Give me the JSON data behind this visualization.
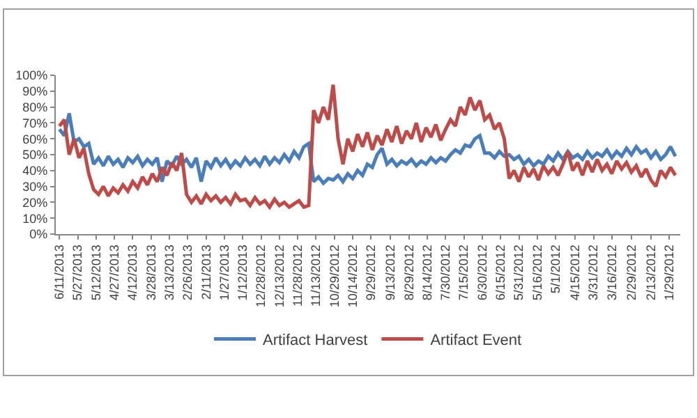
{
  "chart_data": {
    "type": "line",
    "x": [
      "2013-06-11",
      "2013-06-07",
      "2013-06-03",
      "2013-05-30",
      "2013-05-26",
      "2013-05-22",
      "2013-05-18",
      "2013-05-14",
      "2013-05-10",
      "2013-05-06",
      "2013-05-02",
      "2013-04-28",
      "2013-04-24",
      "2013-04-20",
      "2013-04-16",
      "2013-04-12",
      "2013-04-08",
      "2013-04-04",
      "2013-03-31",
      "2013-03-27",
      "2013-03-23",
      "2013-03-19",
      "2013-03-15",
      "2013-03-11",
      "2013-03-07",
      "2013-03-03",
      "2013-02-27",
      "2013-02-23",
      "2013-02-19",
      "2013-02-15",
      "2013-02-11",
      "2013-02-07",
      "2013-02-03",
      "2013-01-30",
      "2013-01-26",
      "2013-01-22",
      "2013-01-18",
      "2013-01-14",
      "2013-01-10",
      "2013-01-06",
      "2013-01-02",
      "2012-12-29",
      "2012-12-25",
      "2012-12-21",
      "2012-12-17",
      "2012-12-13",
      "2012-12-09",
      "2012-12-05",
      "2012-12-01",
      "2012-11-27",
      "2012-11-23",
      "2012-11-19",
      "2012-11-15",
      "2012-11-11",
      "2012-11-07",
      "2012-11-03",
      "2012-10-30",
      "2012-10-26",
      "2012-10-22",
      "2012-10-18",
      "2012-10-14",
      "2012-10-10",
      "2012-10-06",
      "2012-10-02",
      "2012-09-28",
      "2012-09-24",
      "2012-09-20",
      "2012-09-16",
      "2012-09-12",
      "2012-09-08",
      "2012-09-04",
      "2012-08-31",
      "2012-08-27",
      "2012-08-23",
      "2012-08-19",
      "2012-08-15",
      "2012-08-11",
      "2012-08-07",
      "2012-08-03",
      "2012-07-30",
      "2012-07-26",
      "2012-07-22",
      "2012-07-18",
      "2012-07-14",
      "2012-07-10",
      "2012-07-06",
      "2012-07-02",
      "2012-06-28",
      "2012-06-24",
      "2012-06-20",
      "2012-06-16",
      "2012-06-12",
      "2012-06-08",
      "2012-06-04",
      "2012-05-31",
      "2012-05-27",
      "2012-05-23",
      "2012-05-19",
      "2012-05-15",
      "2012-05-11",
      "2012-05-07",
      "2012-05-03",
      "2012-04-29",
      "2012-04-25",
      "2012-04-21",
      "2012-04-17",
      "2012-04-13",
      "2012-04-09",
      "2012-04-05",
      "2012-04-01",
      "2012-03-28",
      "2012-03-24",
      "2012-03-20",
      "2012-03-16",
      "2012-03-12",
      "2012-03-08",
      "2012-03-04",
      "2012-02-29",
      "2012-02-25",
      "2012-02-21",
      "2012-02-17",
      "2012-02-13",
      "2012-02-09",
      "2012-02-05",
      "2012-02-01",
      "2012-01-28",
      "2012-01-24"
    ],
    "series": [
      {
        "name": "Artifact Harvest",
        "color": "#4a7ebb",
        "values": [
          66,
          62,
          76,
          58,
          60,
          55,
          57,
          44,
          48,
          43,
          49,
          44,
          47,
          42,
          48,
          45,
          49,
          43,
          47,
          44,
          48,
          33,
          46,
          43,
          49,
          44,
          47,
          42,
          48,
          33,
          46,
          42,
          48,
          43,
          47,
          42,
          46,
          43,
          48,
          44,
          47,
          43,
          49,
          44,
          48,
          45,
          50,
          46,
          52,
          48,
          55,
          57,
          33,
          36,
          32,
          35,
          34,
          37,
          33,
          38,
          35,
          40,
          37,
          44,
          42,
          50,
          54,
          44,
          47,
          43,
          46,
          44,
          47,
          43,
          46,
          44,
          48,
          45,
          48,
          46,
          50,
          53,
          51,
          56,
          55,
          60,
          62,
          51,
          51,
          48,
          52,
          49,
          50,
          47,
          49,
          44,
          47,
          43,
          46,
          44,
          49,
          46,
          51,
          47,
          52,
          48,
          50,
          47,
          52,
          48,
          51,
          49,
          53,
          48,
          52,
          49,
          54,
          50,
          55,
          51,
          53,
          48,
          52,
          47,
          50,
          55,
          49
        ]
      },
      {
        "name": "Artifact Event",
        "color": "#be4b48",
        "values": [
          68,
          72,
          50,
          60,
          48,
          54,
          38,
          28,
          25,
          30,
          24,
          29,
          26,
          31,
          27,
          33,
          29,
          36,
          31,
          38,
          33,
          42,
          37,
          45,
          40,
          51,
          25,
          20,
          24,
          19,
          25,
          21,
          24,
          20,
          23,
          19,
          25,
          21,
          22,
          18,
          23,
          19,
          21,
          17,
          22,
          18,
          20,
          17,
          19,
          21,
          17,
          18,
          78,
          70,
          80,
          72,
          94,
          60,
          44,
          60,
          52,
          63,
          55,
          64,
          53,
          62,
          56,
          66,
          58,
          68,
          57,
          65,
          60,
          70,
          58,
          67,
          61,
          69,
          59,
          66,
          72,
          68,
          80,
          75,
          86,
          78,
          84,
          72,
          75,
          66,
          70,
          60,
          35,
          40,
          33,
          42,
          36,
          41,
          34,
          43,
          38,
          42,
          37,
          44,
          52,
          40,
          45,
          37,
          46,
          39,
          47,
          40,
          44,
          38,
          46,
          41,
          45,
          39,
          43,
          36,
          41,
          34,
          30,
          40,
          36,
          42,
          37
        ]
      }
    ],
    "xlim": [
      "2013-06-14",
      "2012-01-20"
    ],
    "xticks": [
      {
        "value": "2013-06-11",
        "label": "6/11/2013"
      },
      {
        "value": "2013-05-27",
        "label": "5/27/2013"
      },
      {
        "value": "2013-05-12",
        "label": "5/12/2013"
      },
      {
        "value": "2013-04-27",
        "label": "4/27/2013"
      },
      {
        "value": "2013-04-12",
        "label": "4/12/2013"
      },
      {
        "value": "2013-03-28",
        "label": "3/28/2013"
      },
      {
        "value": "2013-03-13",
        "label": "3/13/2013"
      },
      {
        "value": "2013-02-26",
        "label": "2/26/2013"
      },
      {
        "value": "2013-02-11",
        "label": "2/11/2013"
      },
      {
        "value": "2013-01-27",
        "label": "1/27/2013"
      },
      {
        "value": "2013-01-12",
        "label": "1/12/2013"
      },
      {
        "value": "2012-12-28",
        "label": "12/28/2012"
      },
      {
        "value": "2012-12-13",
        "label": "12/13/2012"
      },
      {
        "value": "2012-11-28",
        "label": "11/28/2012"
      },
      {
        "value": "2012-11-13",
        "label": "11/13/2012"
      },
      {
        "value": "2012-10-29",
        "label": "10/29/2012"
      },
      {
        "value": "2012-10-14",
        "label": "10/14/2012"
      },
      {
        "value": "2012-09-29",
        "label": "9/29/2012"
      },
      {
        "value": "2012-09-13",
        "label": "9/13/2012"
      },
      {
        "value": "2012-08-29",
        "label": "8/29/2012"
      },
      {
        "value": "2012-08-14",
        "label": "8/14/2012"
      },
      {
        "value": "2012-07-30",
        "label": "7/30/2012"
      },
      {
        "value": "2012-07-15",
        "label": "7/15/2012"
      },
      {
        "value": "2012-06-30",
        "label": "6/30/2012"
      },
      {
        "value": "2012-06-15",
        "label": "6/15/2012"
      },
      {
        "value": "2012-05-31",
        "label": "5/31/2012"
      },
      {
        "value": "2012-05-16",
        "label": "5/16/2012"
      },
      {
        "value": "2012-05-01",
        "label": "5/1/2012"
      },
      {
        "value": "2012-04-15",
        "label": "4/15/2012"
      },
      {
        "value": "2012-03-31",
        "label": "3/31/2012"
      },
      {
        "value": "2012-03-16",
        "label": "3/16/2012"
      },
      {
        "value": "2012-02-29",
        "label": "2/29/2012"
      },
      {
        "value": "2012-02-13",
        "label": "2/13/2012"
      },
      {
        "value": "2012-01-29",
        "label": "1/29/2012"
      }
    ],
    "ylim": [
      0,
      100
    ],
    "yticks": [
      {
        "value": 0,
        "label": "0%"
      },
      {
        "value": 10,
        "label": "10%"
      },
      {
        "value": 20,
        "label": "20%"
      },
      {
        "value": 30,
        "label": "30%"
      },
      {
        "value": 40,
        "label": "40%"
      },
      {
        "value": 50,
        "label": "50%"
      },
      {
        "value": 60,
        "label": "60%"
      },
      {
        "value": 70,
        "label": "70%"
      },
      {
        "value": 80,
        "label": "80%"
      },
      {
        "value": 90,
        "label": "90%"
      },
      {
        "value": 100,
        "label": "100%"
      }
    ],
    "legend": "bottom",
    "marker": "none",
    "line_style": "solid"
  }
}
